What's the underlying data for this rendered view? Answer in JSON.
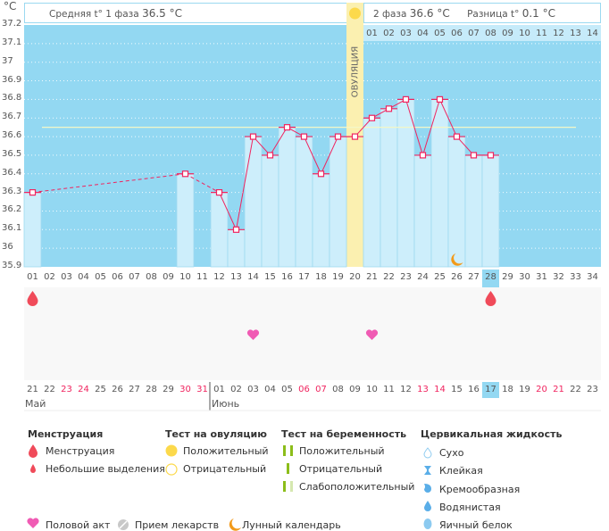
{
  "header": {
    "unit": "°C",
    "phase1_label": "Средняя t° 1 фаза",
    "phase1_value": "36.5 °C",
    "phase2_label": "2 фаза",
    "phase2_value": "36.6 °C",
    "diff_label": "Разница t°",
    "diff_value": "0.1 °C",
    "ovulation_label": "ОВУЛЯЦИЯ"
  },
  "chart_data": {
    "type": "line",
    "ylabel": "°C",
    "ylim": [
      35.9,
      37.2
    ],
    "yticks": [
      "37.2",
      "37.1",
      "37",
      "36.9",
      "36.8",
      "36.7",
      "36.6",
      "36.5",
      "36.4",
      "36.3",
      "36.2",
      "36.1",
      "36",
      "35.9"
    ],
    "grid": true,
    "cycle_days": [
      "01",
      "02",
      "03",
      "04",
      "05",
      "06",
      "07",
      "08",
      "09",
      "10",
      "11",
      "12",
      "13",
      "14",
      "15",
      "16",
      "17",
      "18",
      "19",
      "20",
      "21",
      "22",
      "23",
      "24",
      "25",
      "26",
      "27",
      "28",
      "29",
      "30",
      "31",
      "32",
      "33",
      "34"
    ],
    "phase2_days": [
      "01",
      "02",
      "03",
      "04",
      "05",
      "06",
      "07",
      "08",
      "09",
      "10",
      "11",
      "12",
      "13",
      "14"
    ],
    "points": [
      {
        "day": 1,
        "t": 36.3
      },
      {
        "day": 10,
        "t": 36.4
      },
      {
        "day": 12,
        "t": 36.3
      },
      {
        "day": 13,
        "t": 36.1
      },
      {
        "day": 14,
        "t": 36.6
      },
      {
        "day": 15,
        "t": 36.5
      },
      {
        "day": 16,
        "t": 36.65
      },
      {
        "day": 17,
        "t": 36.6
      },
      {
        "day": 18,
        "t": 36.4
      },
      {
        "day": 19,
        "t": 36.6
      },
      {
        "day": 20,
        "t": 36.6
      },
      {
        "day": 21,
        "t": 36.7
      },
      {
        "day": 22,
        "t": 36.75
      },
      {
        "day": 23,
        "t": 36.8
      },
      {
        "day": 24,
        "t": 36.5
      },
      {
        "day": 25,
        "t": 36.8
      },
      {
        "day": 26,
        "t": 36.6
      },
      {
        "day": 27,
        "t": 36.5
      },
      {
        "day": 28,
        "t": 36.5
      }
    ],
    "average_line": 36.65,
    "ovulation_day": 20,
    "current_day": 28,
    "colors": {
      "plot_bg": "#93d8f2",
      "bar": "#cdeefb",
      "line": "#f0245f",
      "ovulation": "#fbf0b0"
    }
  },
  "events": {
    "menstruation_days": [
      1,
      28
    ],
    "intercourse_days": [
      14,
      21
    ],
    "moon_days": [
      26
    ]
  },
  "calendar": {
    "dates": [
      "21",
      "22",
      "23",
      "24",
      "25",
      "26",
      "27",
      "28",
      "29",
      "30",
      "31",
      "01",
      "02",
      "03",
      "04",
      "05",
      "06",
      "07",
      "08",
      "09",
      "10",
      "11",
      "12",
      "13",
      "14",
      "15",
      "16",
      "17",
      "18",
      "19",
      "20",
      "21",
      "22",
      "23"
    ],
    "weekend": [
      3,
      4,
      10,
      11,
      17,
      18,
      24,
      25,
      31,
      32
    ],
    "months": [
      {
        "label": "Май",
        "start": 1
      },
      {
        "label": "Июнь",
        "start": 12
      }
    ]
  },
  "legend": {
    "menstruation": {
      "title": "Менструация",
      "items": [
        "Менструация",
        "Небольшие выделения"
      ]
    },
    "ovulation_test": {
      "title": "Тест на овуляцию",
      "items": [
        "Положительный",
        "Отрицательный"
      ]
    },
    "pregnancy_test": {
      "title": "Тест на беременность",
      "items": [
        "Положительный",
        "Отрицательный",
        "Слабоположительный"
      ]
    },
    "cervical": {
      "title": "Цервикальная жидкость",
      "items": [
        "Сухо",
        "Клейкая",
        "Кремообразная",
        "Водянистая",
        "Яичный белок"
      ]
    },
    "other": [
      "Половой акт",
      "Прием лекарств",
      "Лунный календарь"
    ]
  }
}
